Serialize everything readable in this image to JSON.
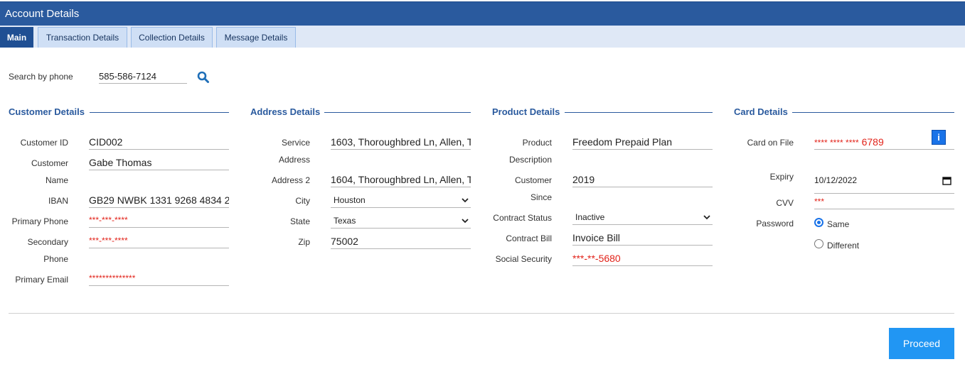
{
  "window": {
    "title": "Account Details"
  },
  "tabs": [
    {
      "label": "Main",
      "active": true
    },
    {
      "label": "Transaction Details",
      "active": false
    },
    {
      "label": "Collection Details",
      "active": false
    },
    {
      "label": "Message Details",
      "active": false
    }
  ],
  "search": {
    "label": "Search by phone",
    "value": "585-586-7124",
    "icon": "search-icon"
  },
  "customer": {
    "heading": "Customer Details",
    "id_label": "Customer ID",
    "id_value": "CID002",
    "name_label_1": "Customer",
    "name_label_2": "Name",
    "name_value": "Gabe Thomas",
    "iban_label": "IBAN",
    "iban_value": "GB29 NWBK 1331 9268 4834 2",
    "primary_phone_label": "Primary Phone",
    "primary_phone_value": "***-***-****",
    "secondary_phone_label_1": "Secondary",
    "secondary_phone_label_2": "Phone",
    "secondary_phone_value": "***-***-****",
    "email_label": "Primary Email",
    "email_value": "**************"
  },
  "address": {
    "heading": "Address Details",
    "service_label_1": "Service",
    "service_label_2": "Address",
    "service_value": "1603, Thoroughbred Ln, Allen, T",
    "address2_label": "Address 2",
    "address2_value": "1604, Thoroughbred Ln, Allen, T",
    "city_label": "City",
    "city_value": "Houston",
    "state_label": "State",
    "state_value": "Texas",
    "zip_label": "Zip",
    "zip_value": "75002"
  },
  "product": {
    "heading": "Product Details",
    "desc_label_1": "Product",
    "desc_label_2": "Description",
    "desc_value": "Freedom Prepaid Plan",
    "since_label_1": "Customer",
    "since_label_2": "Since",
    "since_value": "2019",
    "status_label": "Contract Status",
    "status_value": "Inactive",
    "bill_label": "Contract Bill",
    "bill_value": "Invoice Bill",
    "ssn_label": "Social Security",
    "ssn_value": "***-**-5680"
  },
  "card": {
    "heading": "Card Details",
    "card_label": "Card on File",
    "card_value_masked": "**** **** ****",
    "card_value_last": "6789",
    "info_label": "i",
    "expiry_label": "Expiry",
    "expiry_value": "10/12/2022",
    "cvv_label": "CVV",
    "cvv_value": "***",
    "password_label": "Password",
    "password_options": [
      {
        "label": "Same",
        "checked": true
      },
      {
        "label": "Different",
        "checked": false
      }
    ]
  },
  "actions": {
    "proceed_label": "Proceed"
  },
  "colors": {
    "header": "#2a5a9e",
    "accent": "#2196f3",
    "masked": "#e2231a"
  }
}
